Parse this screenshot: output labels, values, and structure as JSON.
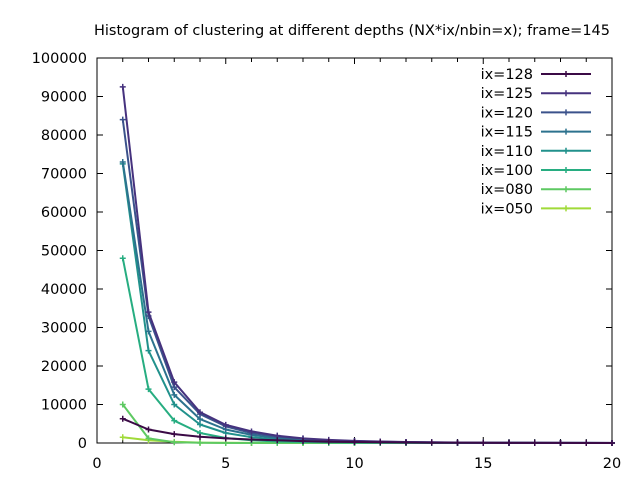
{
  "chart_data": {
    "type": "line",
    "title": "Histogram of clustering at different depths (NX*ix/nbin=x); frame=145",
    "xlabel": "",
    "ylabel": "",
    "xlim": [
      0,
      20
    ],
    "ylim": [
      0,
      100000
    ],
    "xticks": [
      0,
      5,
      10,
      15,
      20
    ],
    "yticks": [
      0,
      10000,
      20000,
      30000,
      40000,
      50000,
      60000,
      70000,
      80000,
      90000,
      100000
    ],
    "grid": false,
    "legend_position": "top-right",
    "marker": "plus",
    "x": [
      1,
      2,
      3,
      4,
      5,
      6,
      7,
      8,
      9,
      10,
      11,
      12,
      13,
      14,
      15,
      16,
      17,
      18,
      19,
      20
    ],
    "series": [
      {
        "name": "ix=128",
        "color": "#3b0a46",
        "values": [
          6300,
          3500,
          2300,
          1600,
          1200,
          900,
          700,
          500,
          350,
          250,
          180,
          120,
          90,
          60,
          40,
          30,
          20,
          15,
          10,
          10
        ]
      },
      {
        "name": "ix=125",
        "color": "#46327e",
        "values": [
          92500,
          34000,
          15800,
          8000,
          4700,
          3000,
          1900,
          1200,
          800,
          550,
          380,
          260,
          180,
          120,
          80,
          60,
          40,
          30,
          20,
          15
        ]
      },
      {
        "name": "ix=120",
        "color": "#3b528b",
        "values": [
          84000,
          33000,
          14500,
          7500,
          4300,
          2600,
          1700,
          1100,
          700,
          480,
          330,
          230,
          160,
          110,
          75,
          50,
          35,
          25,
          18,
          12
        ]
      },
      {
        "name": "ix=115",
        "color": "#2c728e",
        "values": [
          73000,
          29000,
          12500,
          6200,
          3500,
          2100,
          1300,
          800,
          550,
          380,
          260,
          180,
          120,
          85,
          60,
          40,
          28,
          20,
          14,
          10
        ]
      },
      {
        "name": "ix=110",
        "color": "#21918c",
        "values": [
          72500,
          24000,
          10000,
          4800,
          2600,
          1500,
          900,
          580,
          380,
          250,
          170,
          115,
          80,
          55,
          38,
          26,
          18,
          12,
          9,
          6
        ]
      },
      {
        "name": "ix=100",
        "color": "#27ad81",
        "values": [
          48000,
          14000,
          5800,
          2600,
          1300,
          700,
          400,
          250,
          160,
          100,
          65,
          42,
          28,
          18,
          12,
          8,
          6,
          4,
          3,
          2
        ]
      },
      {
        "name": "ix=080",
        "color": "#5ec962",
        "values": [
          10000,
          1200,
          200,
          40,
          10,
          5,
          2,
          1,
          0,
          0,
          0,
          0,
          0,
          0,
          0,
          0,
          0,
          0,
          0,
          0
        ]
      },
      {
        "name": "ix=050",
        "color": "#a0da39",
        "values": [
          1500,
          700,
          300,
          100,
          40,
          15,
          5,
          2,
          0,
          0,
          0,
          0,
          0,
          0,
          0,
          0,
          0,
          0,
          0,
          0
        ]
      }
    ]
  }
}
